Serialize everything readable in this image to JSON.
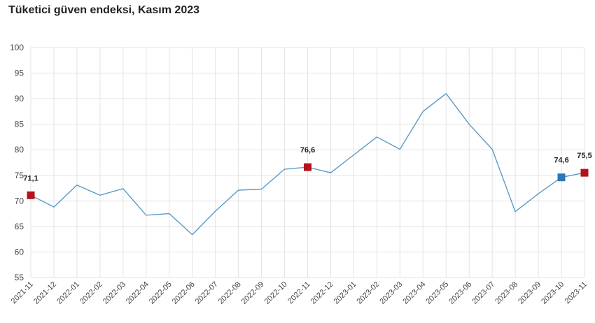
{
  "chart_data": {
    "type": "line",
    "title": "Tüketici güven endeksi, Kasım 2023",
    "xlabel": "",
    "ylabel": "",
    "ylim": [
      55,
      100
    ],
    "yticks": [
      "55",
      "60",
      "65",
      "70",
      "75",
      "80",
      "85",
      "90",
      "95",
      "100"
    ],
    "categories": [
      "2021-11",
      "2021-12",
      "2022-01",
      "2022-02",
      "2022-03",
      "2022-04",
      "2022-05",
      "2022-06",
      "2022-07",
      "2022-08",
      "2022-09",
      "2022-10",
      "2022-11",
      "2022-12",
      "2023-01",
      "2023-02",
      "2023-03",
      "2023-04",
      "2023-05",
      "2023-06",
      "2023-07",
      "2023-08",
      "2023-09",
      "2023-10",
      "2023-11"
    ],
    "series": [
      {
        "values": [
          71.1,
          68.8,
          73.1,
          71.1,
          72.4,
          67.2,
          67.5,
          63.4,
          68.0,
          72.1,
          72.3,
          76.2,
          76.6,
          75.5,
          79.0,
          82.5,
          80.1,
          87.5,
          91.0,
          85.0,
          80.1,
          67.9,
          71.4,
          74.6,
          75.5
        ],
        "color": "#5b9bc4"
      }
    ],
    "markers": [
      {
        "index": 0,
        "label": "71,1",
        "color": "#b5121b"
      },
      {
        "index": 12,
        "label": "76,6",
        "color": "#b5121b"
      },
      {
        "index": 23,
        "label": "74,6",
        "color": "#2e75b6"
      },
      {
        "index": 24,
        "label": "75,5",
        "color": "#b5121b"
      }
    ],
    "grid": true,
    "legend": "none"
  }
}
